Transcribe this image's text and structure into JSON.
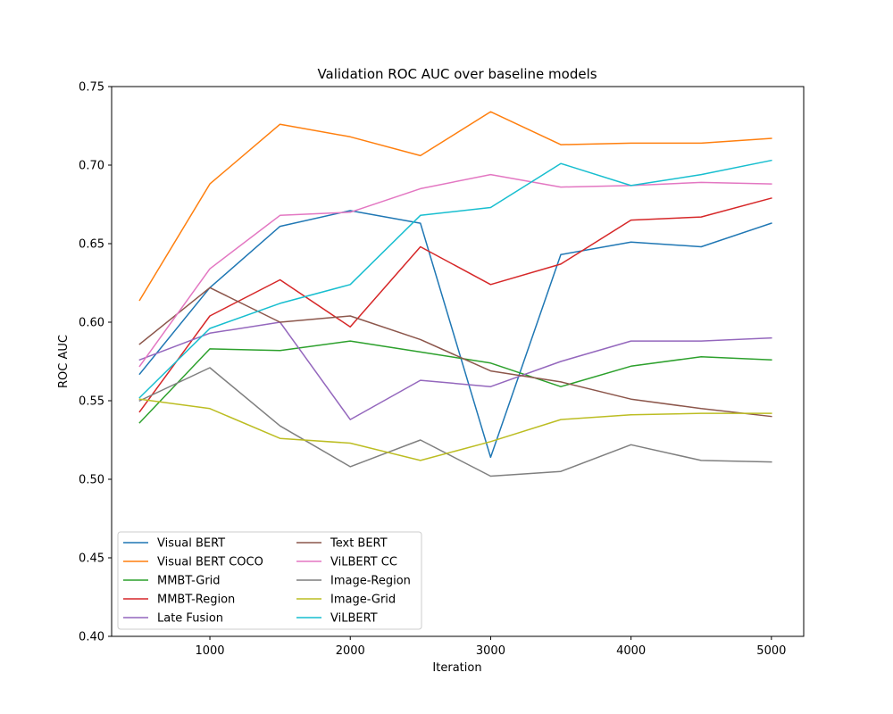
{
  "chart_data": {
    "type": "line",
    "title": "Validation ROC AUC over baseline models",
    "xlabel": "Iteration",
    "ylabel": "ROC AUC",
    "xlim": [
      300,
      5230
    ],
    "ylim": [
      0.4,
      0.75
    ],
    "x": [
      500,
      1000,
      1500,
      2000,
      2500,
      3000,
      3500,
      4000,
      4500,
      5000
    ],
    "xticks": [
      1000,
      2000,
      3000,
      4000,
      5000
    ],
    "xtick_labels": [
      "1000",
      "2000",
      "3000",
      "4000",
      "5000"
    ],
    "yticks": [
      0.4,
      0.45,
      0.5,
      0.55,
      0.6,
      0.65,
      0.7,
      0.75
    ],
    "ytick_labels": [
      "0.40",
      "0.45",
      "0.50",
      "0.55",
      "0.60",
      "0.65",
      "0.70",
      "0.75"
    ],
    "grid": false,
    "legend_position": "lower-left",
    "legend_columns": 2,
    "series": [
      {
        "name": "Visual BERT",
        "color": "#1f77b4",
        "values": [
          0.567,
          0.622,
          0.661,
          0.671,
          0.663,
          0.514,
          0.643,
          0.651,
          0.648,
          0.663
        ]
      },
      {
        "name": "Visual BERT COCO",
        "color": "#ff7f0e",
        "values": [
          0.614,
          0.688,
          0.726,
          0.718,
          0.706,
          0.734,
          0.713,
          0.714,
          0.714,
          0.717
        ]
      },
      {
        "name": "MMBT-Grid",
        "color": "#2ca02c",
        "values": [
          0.536,
          0.583,
          0.582,
          0.588,
          0.581,
          0.574,
          0.559,
          0.572,
          0.578,
          0.576
        ]
      },
      {
        "name": "MMBT-Region",
        "color": "#d62728",
        "values": [
          0.543,
          0.604,
          0.627,
          0.597,
          0.648,
          0.624,
          0.637,
          0.665,
          0.667,
          0.679
        ]
      },
      {
        "name": "Late Fusion",
        "color": "#9467bd",
        "values": [
          0.576,
          0.593,
          0.6,
          0.538,
          0.563,
          0.559,
          0.575,
          0.588,
          0.588,
          0.59
        ]
      },
      {
        "name": "Text BERT",
        "color": "#8c564b",
        "values": [
          0.586,
          0.622,
          0.6,
          0.604,
          0.589,
          0.569,
          0.562,
          0.551,
          0.545,
          0.54
        ]
      },
      {
        "name": "ViLBERT CC",
        "color": "#e377c2",
        "values": [
          0.572,
          0.634,
          0.668,
          0.67,
          0.685,
          0.694,
          0.686,
          0.687,
          0.689,
          0.688
        ]
      },
      {
        "name": "Image-Region",
        "color": "#7f7f7f",
        "values": [
          0.55,
          0.571,
          0.534,
          0.508,
          0.525,
          0.502,
          0.505,
          0.522,
          0.512,
          0.511
        ]
      },
      {
        "name": "Image-Grid",
        "color": "#bcbd22",
        "values": [
          0.551,
          0.545,
          0.526,
          0.523,
          0.512,
          0.524,
          0.538,
          0.541,
          0.542,
          0.542
        ]
      },
      {
        "name": "ViLBERT",
        "color": "#17becf",
        "values": [
          0.552,
          0.596,
          0.612,
          0.624,
          0.668,
          0.673,
          0.701,
          0.687,
          0.694,
          0.703
        ]
      }
    ]
  }
}
